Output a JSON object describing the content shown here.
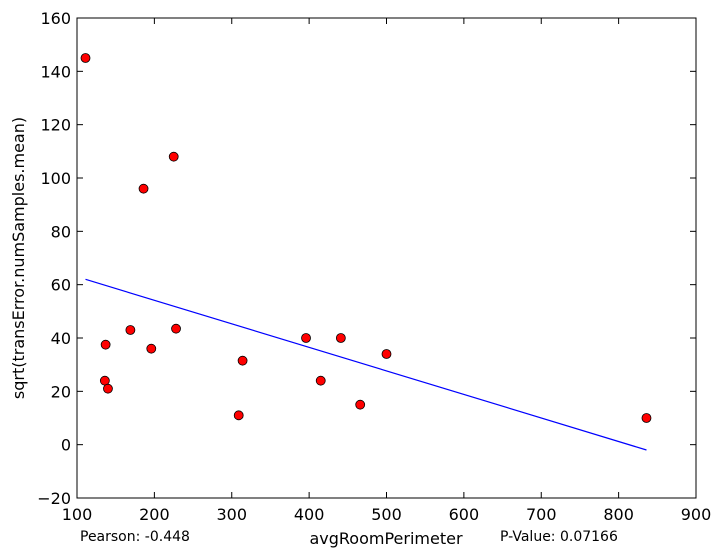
{
  "chart_data": {
    "type": "scatter",
    "title": "",
    "xlabel": "avgRoomPerimeter",
    "ylabel": "sqrt(transError.numSamples.mean)",
    "xlim": [
      100,
      900
    ],
    "ylim": [
      -20,
      160
    ],
    "x_ticks": [
      100,
      200,
      300,
      400,
      500,
      600,
      700,
      800,
      900
    ],
    "y_ticks": [
      -20,
      0,
      20,
      40,
      60,
      80,
      100,
      120,
      140,
      160
    ],
    "x_tick_labels": [
      "100",
      "200",
      "300",
      "400",
      "500",
      "600",
      "700",
      "800",
      "900"
    ],
    "y_tick_labels": [
      "−20",
      "0",
      "20",
      "40",
      "60",
      "80",
      "100",
      "120",
      "140",
      "160"
    ],
    "grid": false,
    "points": [
      {
        "x": 111,
        "y": 145
      },
      {
        "x": 136,
        "y": 24
      },
      {
        "x": 137,
        "y": 37.5
      },
      {
        "x": 140,
        "y": 21
      },
      {
        "x": 169,
        "y": 43
      },
      {
        "x": 186,
        "y": 96
      },
      {
        "x": 196,
        "y": 36
      },
      {
        "x": 225,
        "y": 108
      },
      {
        "x": 228,
        "y": 43.5
      },
      {
        "x": 309,
        "y": 11
      },
      {
        "x": 314,
        "y": 31.5
      },
      {
        "x": 396,
        "y": 40
      },
      {
        "x": 415,
        "y": 24
      },
      {
        "x": 441,
        "y": 40
      },
      {
        "x": 466,
        "y": 15
      },
      {
        "x": 500,
        "y": 34
      },
      {
        "x": 836,
        "y": 10
      }
    ],
    "fit_line": {
      "x": [
        111,
        836
      ],
      "y": [
        62,
        -2
      ]
    },
    "colors": {
      "marker_fill": "#ff0000",
      "marker_edge": "#000000",
      "fit_line": "#0000ff",
      "axes": "#000000"
    },
    "annotations": {
      "pearson": "Pearson: -0.448",
      "pvalue": "P-Value: 0.07166"
    }
  }
}
